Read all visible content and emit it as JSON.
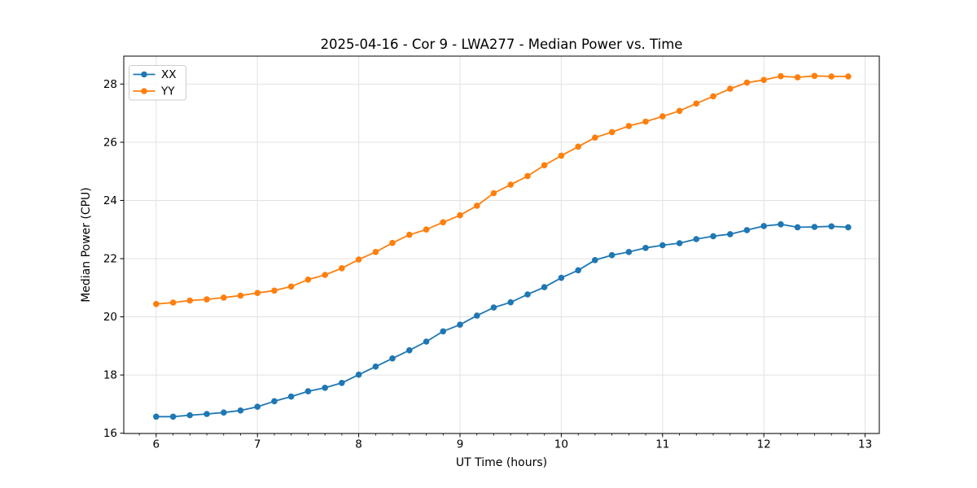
{
  "figure": {
    "background": "#ffffff"
  },
  "chart_data": {
    "type": "line",
    "title": "2025-04-16 - Cor 9 - LWA277 - Median Power vs. Time",
    "xlabel": "UT Time (hours)",
    "ylabel": "Median Power (CPU)",
    "xlim": [
      5.68,
      13.14
    ],
    "ylim": [
      15.99,
      28.96
    ],
    "x_ticks": [
      6,
      7,
      8,
      9,
      10,
      11,
      12,
      13
    ],
    "y_ticks": [
      16,
      18,
      20,
      22,
      24,
      26,
      28
    ],
    "x_minor_tick_interval": 0.16667,
    "grid": true,
    "legend": {
      "position": "upper left"
    },
    "colors": {
      "grid": "#e2e2e2",
      "spine": "#000000",
      "tick": "#000000",
      "text": "#000000",
      "legend_border": "#cccccc",
      "legend_bg": "#ffffff"
    },
    "x": [
      6.0,
      6.167,
      6.333,
      6.5,
      6.667,
      6.833,
      7.0,
      7.167,
      7.333,
      7.5,
      7.667,
      7.833,
      8.0,
      8.167,
      8.333,
      8.5,
      8.667,
      8.833,
      9.0,
      9.167,
      9.333,
      9.5,
      9.667,
      9.833,
      10.0,
      10.167,
      10.333,
      10.5,
      10.667,
      10.833,
      11.0,
      11.167,
      11.333,
      11.5,
      11.667,
      11.833,
      12.0,
      12.167,
      12.333,
      12.5,
      12.667,
      12.833
    ],
    "series": [
      {
        "name": "XX",
        "color": "#1f77b4",
        "marker": "circle",
        "values": [
          16.57,
          16.57,
          16.62,
          16.66,
          16.71,
          16.78,
          16.91,
          17.1,
          17.26,
          17.44,
          17.56,
          17.73,
          18.01,
          18.29,
          18.57,
          18.85,
          19.15,
          19.5,
          19.73,
          20.04,
          20.32,
          20.5,
          20.77,
          21.02,
          21.34,
          21.6,
          21.95,
          22.12,
          22.23,
          22.37,
          22.46,
          22.53,
          22.67,
          22.77,
          22.84,
          22.98,
          23.12,
          23.18,
          23.08,
          23.09,
          23.11,
          23.08
        ]
      },
      {
        "name": "YY",
        "color": "#ff7f0e",
        "marker": "circle",
        "values": [
          20.44,
          20.49,
          20.56,
          20.6,
          20.66,
          20.73,
          20.82,
          20.9,
          21.04,
          21.28,
          21.44,
          21.67,
          21.97,
          22.23,
          22.54,
          22.82,
          23.0,
          23.25,
          23.49,
          23.82,
          24.25,
          24.54,
          24.84,
          25.21,
          25.54,
          25.85,
          26.16,
          26.35,
          26.56,
          26.71,
          26.89,
          27.08,
          27.33,
          27.58,
          27.84,
          28.05,
          28.14,
          28.27,
          28.23,
          28.28,
          28.26,
          28.26
        ]
      }
    ]
  }
}
